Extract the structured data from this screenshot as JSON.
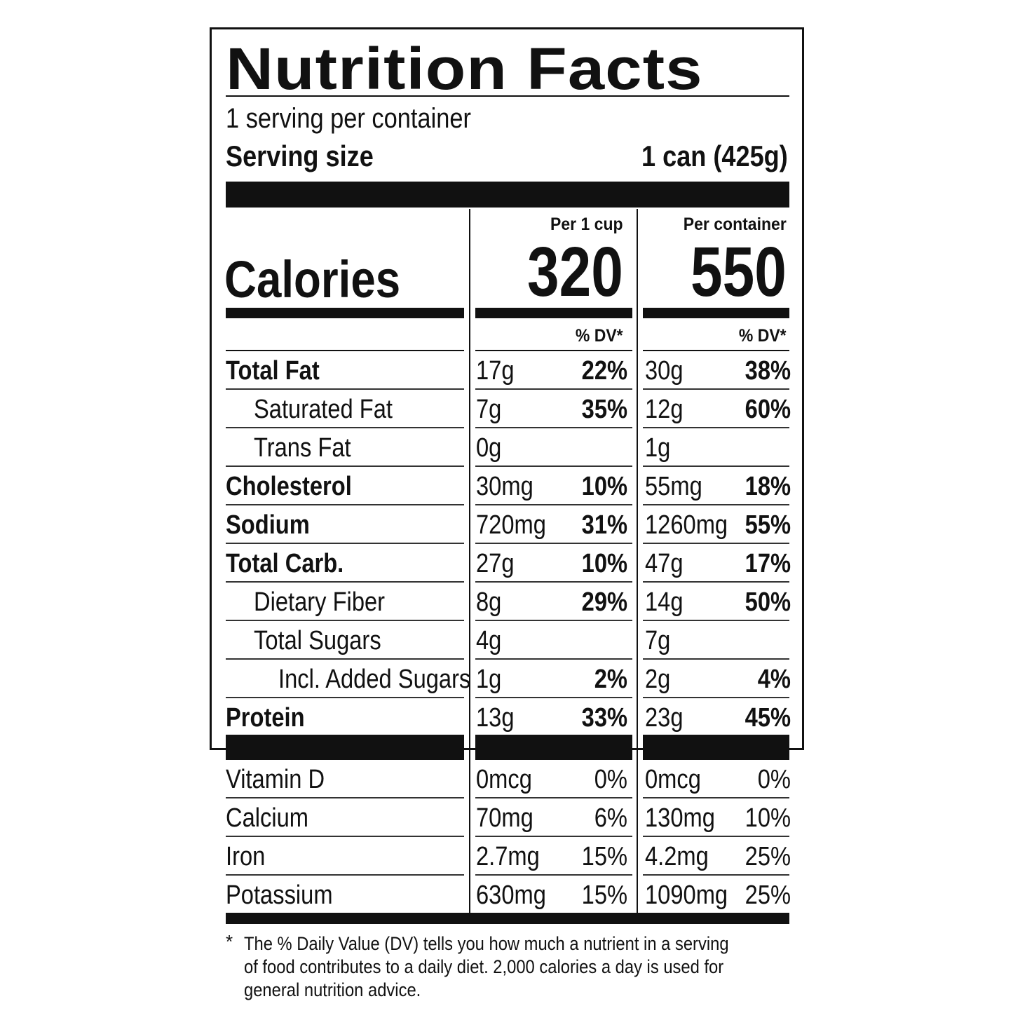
{
  "title": "Nutrition Facts",
  "servings_per_container": "1 serving per container",
  "serving_size": {
    "label": "Serving size",
    "value": "1 can (425g)"
  },
  "columns": [
    {
      "header": "Per 1 cup",
      "calories": "320",
      "dv_header": "% DV*"
    },
    {
      "header": "Per container",
      "calories": "550",
      "dv_header": "% DV*"
    }
  ],
  "calories_label": "Calories",
  "nutrients": [
    {
      "name": "Total Fat",
      "bold": true,
      "indent": 0,
      "values": [
        {
          "amount": "17g",
          "dv": "22%"
        },
        {
          "amount": "30g",
          "dv": "38%"
        }
      ]
    },
    {
      "name": "Saturated Fat",
      "bold": false,
      "indent": 1,
      "values": [
        {
          "amount": "7g",
          "dv": "35%"
        },
        {
          "amount": "12g",
          "dv": "60%"
        }
      ]
    },
    {
      "name": "Trans Fat",
      "bold": false,
      "indent": 1,
      "values": [
        {
          "amount": "0g",
          "dv": ""
        },
        {
          "amount": "1g",
          "dv": ""
        }
      ]
    },
    {
      "name": "Cholesterol",
      "bold": true,
      "indent": 0,
      "values": [
        {
          "amount": "30mg",
          "dv": "10%"
        },
        {
          "amount": "55mg",
          "dv": "18%"
        }
      ]
    },
    {
      "name": "Sodium",
      "bold": true,
      "indent": 0,
      "values": [
        {
          "amount": "720mg",
          "dv": "31%"
        },
        {
          "amount": "1260mg",
          "dv": "55%"
        }
      ]
    },
    {
      "name": "Total Carb.",
      "bold": true,
      "indent": 0,
      "values": [
        {
          "amount": "27g",
          "dv": "10%"
        },
        {
          "amount": "47g",
          "dv": "17%"
        }
      ]
    },
    {
      "name": "Dietary Fiber",
      "bold": false,
      "indent": 1,
      "values": [
        {
          "amount": "8g",
          "dv": "29%"
        },
        {
          "amount": "14g",
          "dv": "50%"
        }
      ]
    },
    {
      "name": "Total Sugars",
      "bold": false,
      "indent": 1,
      "values": [
        {
          "amount": "4g",
          "dv": ""
        },
        {
          "amount": "7g",
          "dv": ""
        }
      ]
    },
    {
      "name": "Incl. Added Sugars",
      "bold": false,
      "indent": 2,
      "values": [
        {
          "amount": "1g",
          "dv": "2%"
        },
        {
          "amount": "2g",
          "dv": "4%"
        }
      ]
    },
    {
      "name": "Protein",
      "bold": true,
      "indent": 0,
      "values": [
        {
          "amount": "13g",
          "dv": "33%"
        },
        {
          "amount": "23g",
          "dv": "45%"
        }
      ]
    }
  ],
  "vitamins": [
    {
      "name": "Vitamin D",
      "values": [
        {
          "amount": "0mcg",
          "dv": "0%"
        },
        {
          "amount": "0mcg",
          "dv": "0%"
        }
      ]
    },
    {
      "name": "Calcium",
      "values": [
        {
          "amount": "70mg",
          "dv": "6%"
        },
        {
          "amount": "130mg",
          "dv": "10%"
        }
      ]
    },
    {
      "name": "Iron",
      "values": [
        {
          "amount": "2.7mg",
          "dv": "15%"
        },
        {
          "amount": "4.2mg",
          "dv": "25%"
        }
      ]
    },
    {
      "name": "Potassium",
      "values": [
        {
          "amount": "630mg",
          "dv": "15%"
        },
        {
          "amount": "1090mg",
          "dv": "25%"
        }
      ]
    }
  ],
  "footnote": {
    "star": "*",
    "text": "The % Daily Value (DV) tells you how much a nutrient in a serving of food contributes to a daily diet. 2,000 calories a day is used for general nutrition advice."
  }
}
